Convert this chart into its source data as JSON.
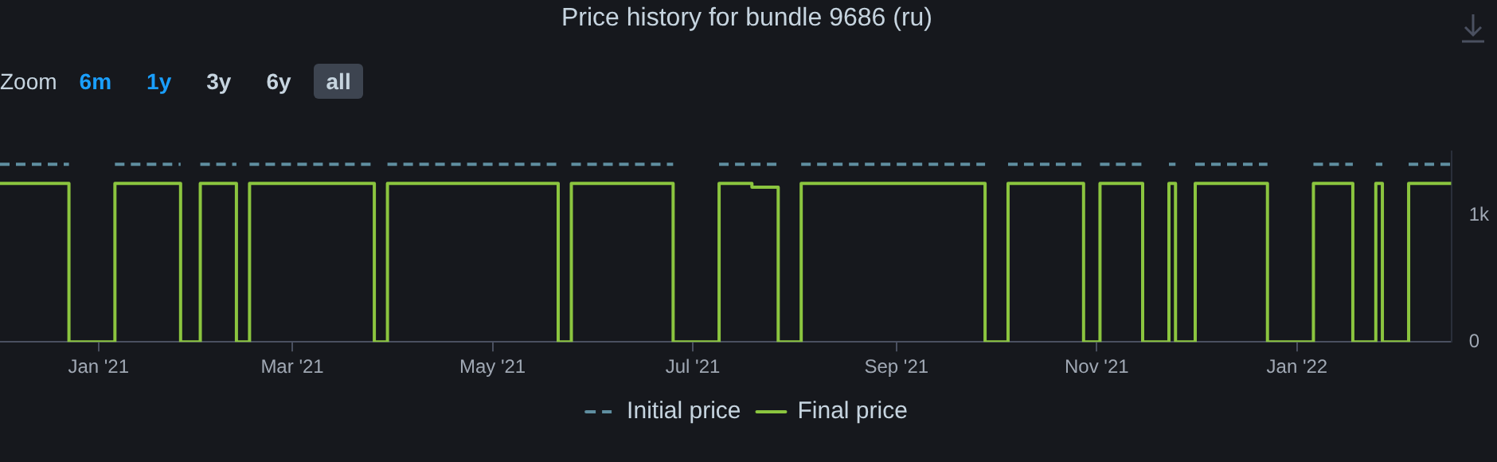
{
  "chart_data": {
    "type": "step",
    "title": "Price history for bundle 9686 (ru)",
    "annotations": [
      "Zoom",
      "6m",
      "1y",
      "3y",
      "6y",
      "all"
    ],
    "xlim": [
      "2020-12-02",
      "2022-02-17"
    ],
    "xticks": [
      {
        "value": "2021-01-01",
        "label": "Jan '21"
      },
      {
        "value": "2021-03-01",
        "label": "Mar '21"
      },
      {
        "value": "2021-05-01",
        "label": "May '21"
      },
      {
        "value": "2021-07-01",
        "label": "Jul '21"
      },
      {
        "value": "2021-09-01",
        "label": "Sep '21"
      },
      {
        "value": "2021-11-01",
        "label": "Nov '21"
      },
      {
        "value": "2022-01-01",
        "label": "Jan '22"
      }
    ],
    "ylim": [
      0,
      1500
    ],
    "yticks": [
      0,
      {
        "value": 1000,
        "label": "1k"
      }
    ],
    "grid": false,
    "legend": "bottom",
    "marker": "none",
    "series": [
      {
        "name": "Initial price",
        "color": "#5f8ea0",
        "line_style": "dashed",
        "x": [
          "2020-12-02",
          "2020-12-23",
          "2021-01-06",
          "2021-01-26",
          "2021-02-01",
          "2021-02-12",
          "2021-02-16",
          "2021-03-26",
          "2021-03-30",
          "2021-05-21",
          "2021-05-25",
          "2021-06-25",
          "2021-07-09",
          "2021-07-27",
          "2021-08-03",
          "2021-09-28",
          "2021-10-05",
          "2021-10-28",
          "2021-11-02",
          "2021-11-15",
          "2021-11-23",
          "2021-11-25",
          "2021-12-01",
          "2021-12-23",
          "2022-01-06",
          "2022-01-18",
          "2022-01-25",
          "2022-01-27",
          "2022-02-04",
          "2022-02-17"
        ],
        "values": [
          1400,
          1400,
          1400,
          1400,
          1400,
          1400,
          1400,
          1400,
          1400,
          1400,
          1400,
          1400,
          1400,
          1400,
          1400,
          1400,
          1400,
          1400,
          1400,
          1400,
          1400,
          1400,
          1400,
          1400,
          1400,
          1400,
          1400,
          1400,
          1400,
          1400
        ]
      },
      {
        "name": "Final price",
        "color": "#8bc53f",
        "line_style": "solid",
        "x": [
          "2020-12-02",
          "2020-12-23",
          "2021-01-06",
          "2021-01-26",
          "2021-02-01",
          "2021-02-12",
          "2021-02-16",
          "2021-03-26",
          "2021-03-30",
          "2021-05-21",
          "2021-05-25",
          "2021-06-25",
          "2021-07-09",
          "2021-07-19",
          "2021-07-27",
          "2021-08-03",
          "2021-09-28",
          "2021-10-05",
          "2021-10-28",
          "2021-11-02",
          "2021-11-15",
          "2021-11-23",
          "2021-11-25",
          "2021-12-01",
          "2021-12-23",
          "2022-01-06",
          "2022-01-18",
          "2022-01-25",
          "2022-01-27",
          "2022-02-04",
          "2022-02-17"
        ],
        "values": [
          1250,
          0,
          1250,
          0,
          1250,
          0,
          1250,
          0,
          1250,
          0,
          1250,
          0,
          1250,
          1220,
          0,
          1250,
          0,
          1250,
          0,
          1250,
          0,
          1250,
          0,
          1250,
          0,
          1250,
          0,
          1250,
          0,
          1250,
          1250
        ]
      }
    ]
  }
}
